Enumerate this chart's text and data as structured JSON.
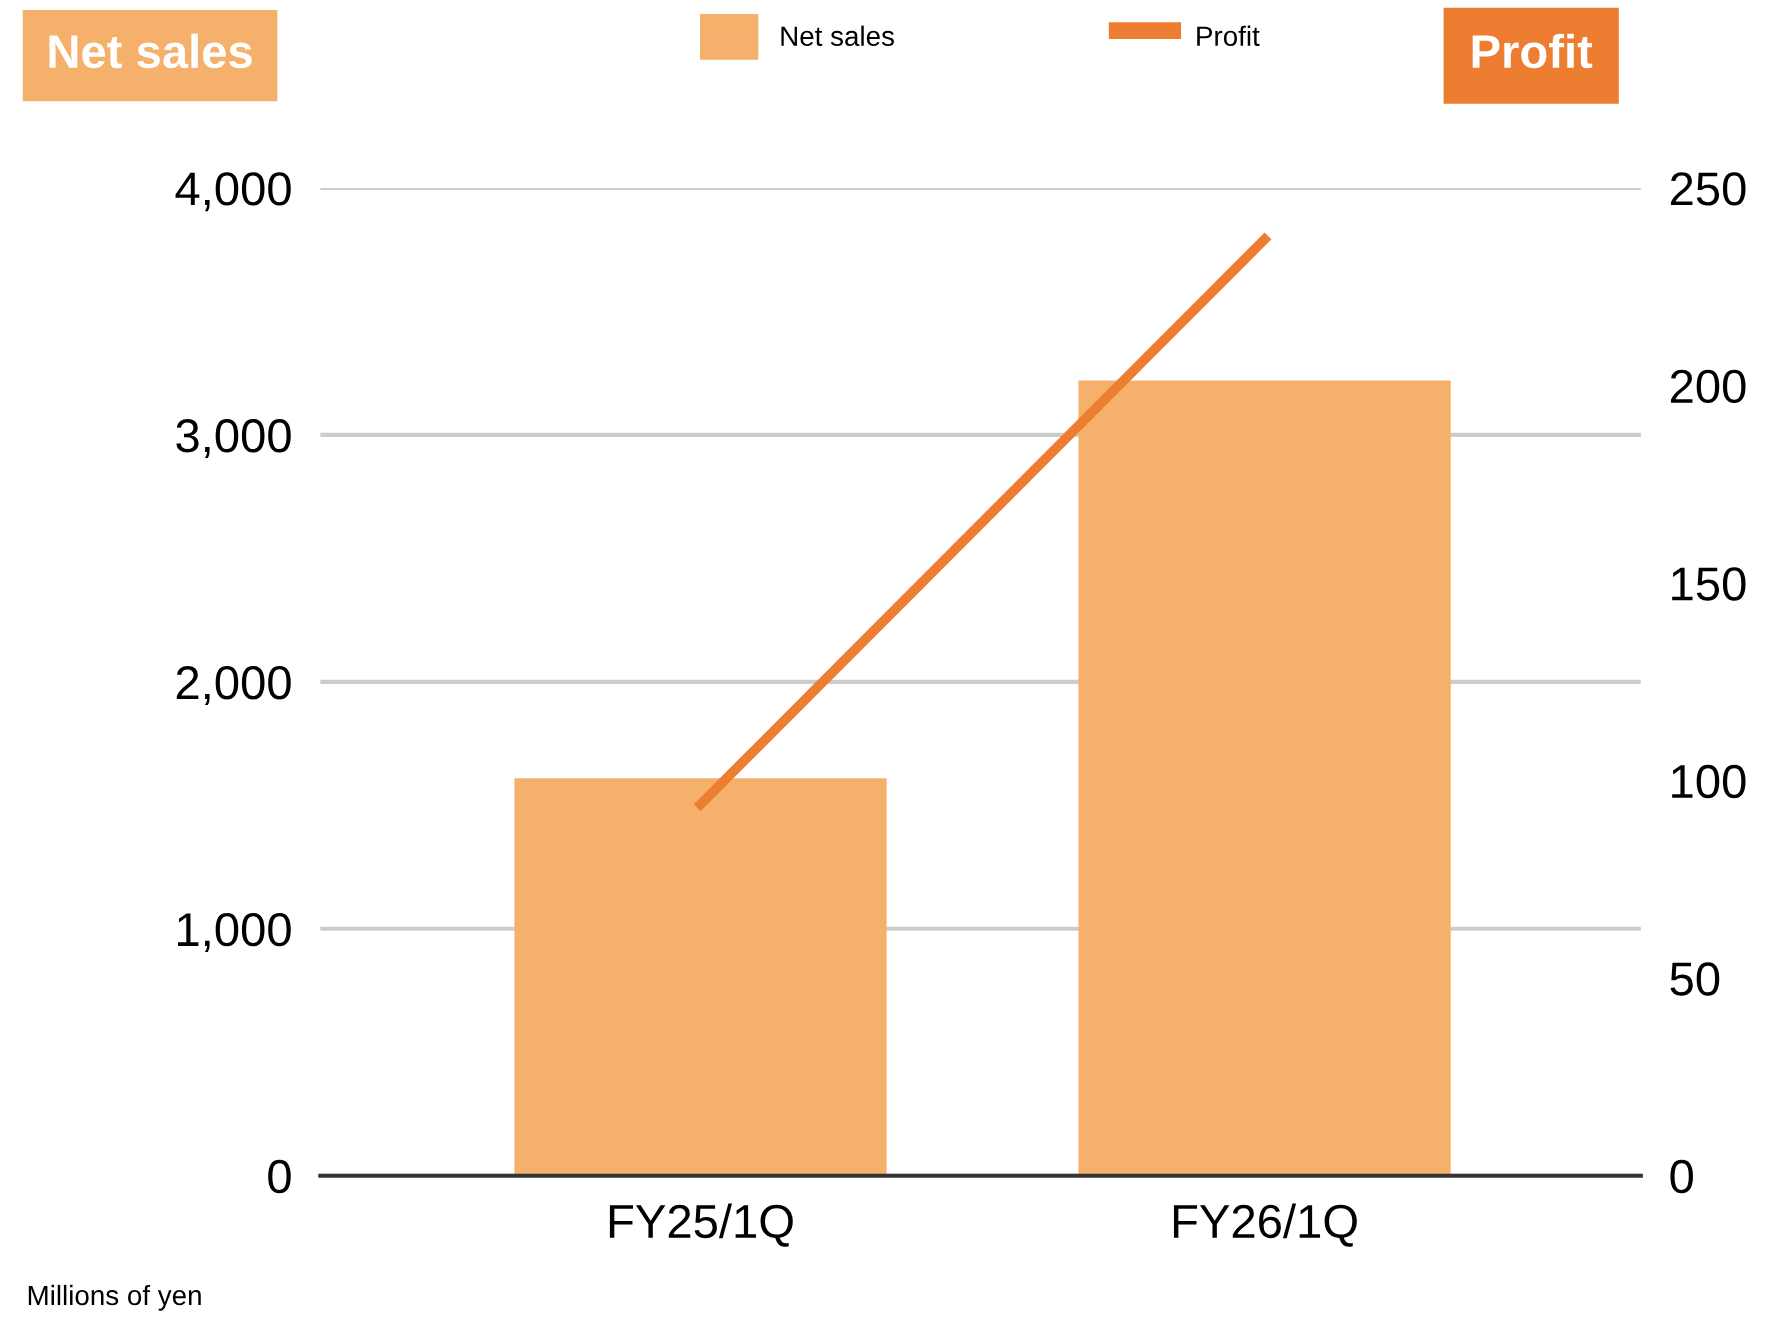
{
  "chart_data": {
    "type": "bar",
    "ylabel": "Net sales",
    "y2label": "Profit",
    "categories": [
      "FY25/1Q",
      "FY26/1Q"
    ],
    "series": [
      {
        "name": "Net sales",
        "color": "#f5b06b",
        "values": [
          1610,
          3220
        ]
      },
      {
        "name": "Profit",
        "type": "line",
        "axis": "y2",
        "color": "#ed7d31",
        "values": [
          94,
          237
        ],
        "marker": "none",
        "line_style": "solid"
      }
    ],
    "ylim": [
      0,
      4000
    ],
    "yticks": [
      0,
      {
        "value": 1000,
        "label": "1,000"
      },
      {
        "value": 2000,
        "label": "2,000"
      },
      {
        "value": 3000,
        "label": "3,000"
      },
      {
        "value": 4000,
        "label": "4,000"
      }
    ],
    "y2lim": [
      0,
      250
    ],
    "y2ticks": [
      0,
      50,
      100,
      150,
      200,
      250
    ],
    "grid": "y",
    "legend": "top",
    "annotations": [
      "Millions of yen"
    ]
  }
}
